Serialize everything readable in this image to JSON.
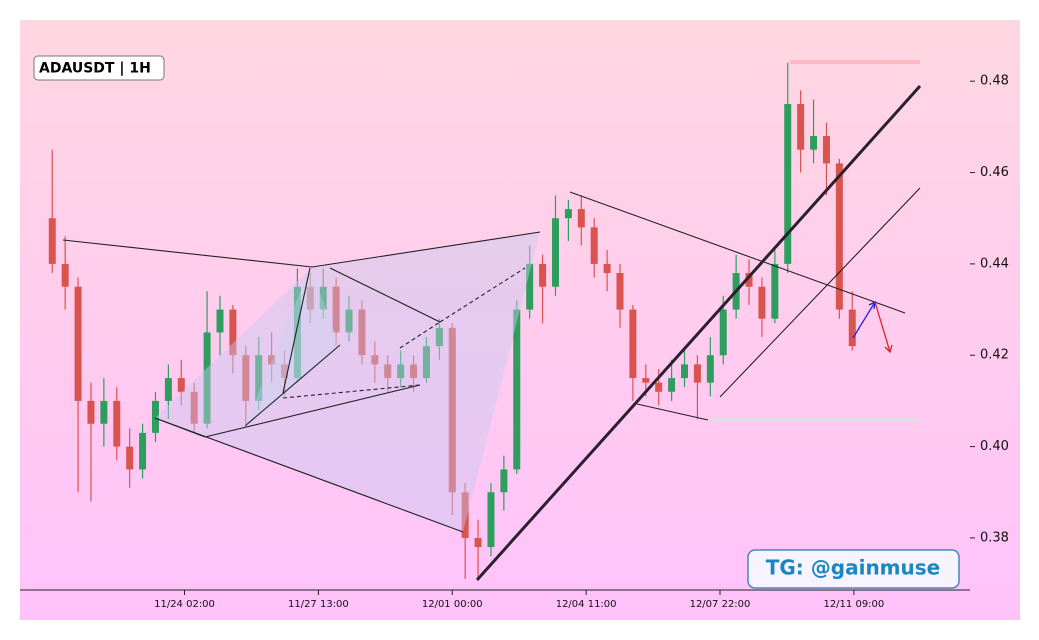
{
  "chart_data": {
    "type": "candlestick",
    "title": "ADAUSDT | 1H",
    "watermark": "TG: @gainmuse",
    "x": [
      "11/20 16:00",
      "11/21 00:00",
      "11/21 08:00",
      "11/21 16:00",
      "11/22 00:00",
      "11/22 08:00",
      "11/22 16:00",
      "11/23 00:00",
      "11/23 08:00",
      "11/23 16:00",
      "11/24 00:00",
      "11/24 08:00",
      "11/24 16:00",
      "11/25 00:00",
      "11/25 08:00",
      "11/25 16:00",
      "11/26 00:00",
      "11/26 08:00",
      "11/26 16:00",
      "11/27 00:00",
      "11/27 08:00",
      "11/27 16:00",
      "11/28 00:00",
      "11/28 08:00",
      "11/28 16:00",
      "11/29 00:00",
      "11/29 08:00",
      "11/29 16:00",
      "11/30 00:00",
      "11/30 08:00",
      "11/30 16:00",
      "12/01 00:00",
      "12/01 08:00",
      "12/01 16:00",
      "12/02 00:00",
      "12/02 08:00",
      "12/02 16:00",
      "12/03 00:00",
      "12/03 08:00",
      "12/03 16:00",
      "12/04 00:00",
      "12/04 08:00",
      "12/04 16:00",
      "12/05 00:00",
      "12/05 08:00",
      "12/05 16:00",
      "12/06 00:00",
      "12/06 08:00",
      "12/06 16:00",
      "12/07 00:00",
      "12/07 08:00",
      "12/07 16:00",
      "12/08 00:00",
      "12/08 08:00",
      "12/08 16:00",
      "12/09 00:00",
      "12/09 08:00",
      "12/09 16:00",
      "12/10 00:00",
      "12/10 08:00",
      "12/10 16:00",
      "12/11 00:00",
      "12/11 08:00"
    ],
    "open": [
      0.45,
      0.44,
      0.435,
      0.41,
      0.405,
      0.41,
      0.4,
      0.395,
      0.403,
      0.41,
      0.415,
      0.412,
      0.405,
      0.425,
      0.43,
      0.42,
      0.41,
      0.42,
      0.418,
      0.415,
      0.435,
      0.43,
      0.435,
      0.425,
      0.43,
      0.42,
      0.418,
      0.415,
      0.418,
      0.415,
      0.422,
      0.426,
      0.39,
      0.38,
      0.378,
      0.39,
      0.395,
      0.43,
      0.44,
      0.435,
      0.45,
      0.452,
      0.448,
      0.44,
      0.438,
      0.43,
      0.415,
      0.414,
      0.412,
      0.415,
      0.418,
      0.414,
      0.42,
      0.43,
      0.438,
      0.435,
      0.428,
      0.44,
      0.475,
      0.465,
      0.468,
      0.462,
      0.43
    ],
    "high": [
      0.465,
      0.446,
      0.437,
      0.414,
      0.415,
      0.413,
      0.404,
      0.405,
      0.412,
      0.418,
      0.419,
      0.414,
      0.434,
      0.433,
      0.431,
      0.422,
      0.424,
      0.425,
      0.421,
      0.439,
      0.438,
      0.439,
      0.437,
      0.433,
      0.432,
      0.423,
      0.42,
      0.421,
      0.42,
      0.424,
      0.428,
      0.427,
      0.392,
      0.384,
      0.392,
      0.398,
      0.432,
      0.444,
      0.442,
      0.455,
      0.454,
      0.455,
      0.45,
      0.443,
      0.44,
      0.431,
      0.418,
      0.417,
      0.419,
      0.421,
      0.42,
      0.424,
      0.433,
      0.442,
      0.441,
      0.437,
      0.443,
      0.484,
      0.478,
      0.476,
      0.471,
      0.463,
      0.434
    ],
    "low": [
      0.438,
      0.43,
      0.39,
      0.388,
      0.4,
      0.397,
      0.391,
      0.393,
      0.401,
      0.406,
      0.409,
      0.403,
      0.404,
      0.42,
      0.416,
      0.405,
      0.408,
      0.414,
      0.411,
      0.414,
      0.427,
      0.428,
      0.422,
      0.423,
      0.418,
      0.414,
      0.412,
      0.413,
      0.412,
      0.414,
      0.419,
      0.385,
      0.371,
      0.371,
      0.376,
      0.386,
      0.394,
      0.428,
      0.427,
      0.433,
      0.445,
      0.444,
      0.437,
      0.434,
      0.426,
      0.41,
      0.411,
      0.409,
      0.41,
      0.413,
      0.406,
      0.411,
      0.418,
      0.428,
      0.431,
      0.424,
      0.427,
      0.438,
      0.46,
      0.462,
      0.455,
      0.428,
      0.421
    ],
    "close": [
      0.44,
      0.435,
      0.41,
      0.405,
      0.41,
      0.4,
      0.395,
      0.403,
      0.41,
      0.415,
      0.412,
      0.405,
      0.425,
      0.43,
      0.42,
      0.41,
      0.42,
      0.418,
      0.415,
      0.435,
      0.43,
      0.435,
      0.425,
      0.43,
      0.42,
      0.418,
      0.415,
      0.418,
      0.415,
      0.422,
      0.426,
      0.39,
      0.38,
      0.378,
      0.39,
      0.395,
      0.43,
      0.44,
      0.435,
      0.45,
      0.452,
      0.448,
      0.44,
      0.438,
      0.43,
      0.415,
      0.414,
      0.412,
      0.415,
      0.418,
      0.414,
      0.42,
      0.43,
      0.438,
      0.435,
      0.428,
      0.44,
      0.475,
      0.465,
      0.468,
      0.462,
      0.43,
      0.422
    ],
    "up_color": "#2e9e5e",
    "down_color": "#d9534f",
    "xlim": [
      "11/19 20:00",
      "12/14 09:00"
    ],
    "xticks": [
      "11/24 02:00",
      "11/27 13:00",
      "12/01 00:00",
      "12/04 11:00",
      "12/07 22:00",
      "12/11 09:00"
    ],
    "ylim": [
      0.3686,
      0.4934
    ],
    "yticks": [
      0.38,
      {
        "value": 0.4,
        "label": "0.40"
      },
      0.42,
      0.44,
      0.46,
      0.48
    ]
  }
}
